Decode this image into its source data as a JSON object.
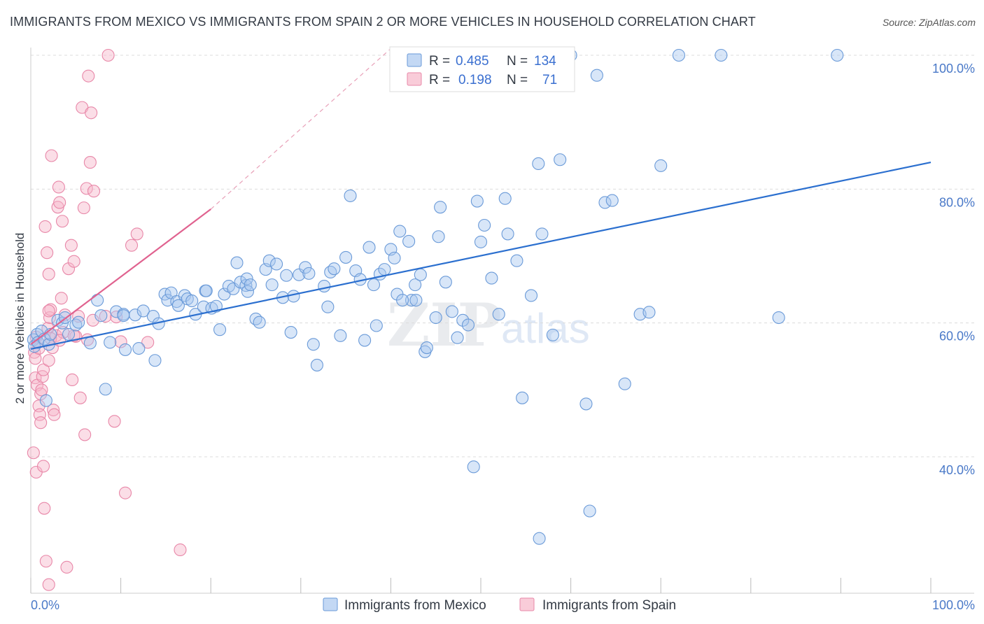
{
  "title": "IMMIGRANTS FROM MEXICO VS IMMIGRANTS FROM SPAIN 2 OR MORE VEHICLES IN HOUSEHOLD CORRELATION CHART",
  "source": "Source: ZipAtlas.com",
  "watermark": {
    "zip": "ZIP",
    "atlas": "atlas"
  },
  "colors": {
    "mexico_fill": "#a9c8f0",
    "mexico_stroke": "#6a9ad8",
    "mexico_line": "#2b6fcf",
    "spain_fill": "#f6b6c9",
    "spain_stroke": "#e887a8",
    "spain_line": "#e0628f",
    "axis_text": "#4a79c8",
    "grid": "#dddddd"
  },
  "legend": {
    "r_label": "R =",
    "n_label": "N =",
    "rows": [
      {
        "series": "mexico",
        "r": "0.485",
        "n": "134"
      },
      {
        "series": "spain",
        "r": "0.198",
        "n": "71"
      }
    ]
  },
  "bottom_legend": [
    {
      "series": "mexico",
      "label": "Immigrants from Mexico"
    },
    {
      "series": "spain",
      "label": "Immigrants from Spain"
    }
  ],
  "chart_data": {
    "type": "scatter",
    "title": "IMMIGRANTS FROM MEXICO VS IMMIGRANTS FROM SPAIN 2 OR MORE VEHICLES IN HOUSEHOLD CORRELATION CHART",
    "xlabel": "",
    "ylabel": "2 or more Vehicles in Household",
    "x_tick_labels": [
      "0.0%",
      "100.0%"
    ],
    "y_tick_labels": [
      "100.0%",
      "80.0%",
      "60.0%",
      "40.0%"
    ],
    "y_ticks": [
      100,
      80,
      60,
      40
    ],
    "xlim": [
      0,
      100
    ],
    "ylim": [
      20,
      102
    ],
    "grid": true,
    "legend_position": "top-center",
    "series": [
      {
        "name": "Immigrants from Mexico",
        "key": "mexico",
        "r": 0.485,
        "n": 134,
        "trend": {
          "x": [
            0,
            100
          ],
          "y": [
            56.1,
            84.0
          ],
          "dashed_extension": false
        },
        "points": [
          [
            0.3,
            57.5
          ],
          [
            0.4,
            56.5
          ],
          [
            0.7,
            58.3
          ],
          [
            0.8,
            57.1
          ],
          [
            1.2,
            58.8
          ],
          [
            1.5,
            57.6
          ],
          [
            1.7,
            48.4
          ],
          [
            2.0,
            56.8
          ],
          [
            2.2,
            58.3
          ],
          [
            3.0,
            60.4
          ],
          [
            3.5,
            60.0
          ],
          [
            3.8,
            60.8
          ],
          [
            4.2,
            58.3
          ],
          [
            5.0,
            59.7
          ],
          [
            5.3,
            60.1
          ],
          [
            6.6,
            57.0
          ],
          [
            7.4,
            63.4
          ],
          [
            7.8,
            61.1
          ],
          [
            8.3,
            50.1
          ],
          [
            8.8,
            57.1
          ],
          [
            9.5,
            61.7
          ],
          [
            10.3,
            61.3
          ],
          [
            10.3,
            61.1
          ],
          [
            10.5,
            56.0
          ],
          [
            11.6,
            61.2
          ],
          [
            12.0,
            56.2
          ],
          [
            12.5,
            61.8
          ],
          [
            13.6,
            61.0
          ],
          [
            13.8,
            54.4
          ],
          [
            14.2,
            59.9
          ],
          [
            14.9,
            64.3
          ],
          [
            15.2,
            63.4
          ],
          [
            15.6,
            64.5
          ],
          [
            16.2,
            63.2
          ],
          [
            16.4,
            62.6
          ],
          [
            17.1,
            64.1
          ],
          [
            17.4,
            63.6
          ],
          [
            17.9,
            63.3
          ],
          [
            18.3,
            61.3
          ],
          [
            19.2,
            62.4
          ],
          [
            19.4,
            64.8
          ],
          [
            19.5,
            64.8
          ],
          [
            20.1,
            62.2
          ],
          [
            20.6,
            62.5
          ],
          [
            21.0,
            59.0
          ],
          [
            21.5,
            64.3
          ],
          [
            22.0,
            65.5
          ],
          [
            22.5,
            65.1
          ],
          [
            22.9,
            69.0
          ],
          [
            23.3,
            66.1
          ],
          [
            23.9,
            65.6
          ],
          [
            24.0,
            66.6
          ],
          [
            24.1,
            64.7
          ],
          [
            24.4,
            65.7
          ],
          [
            25.0,
            60.6
          ],
          [
            25.4,
            60.1
          ],
          [
            26.1,
            68.0
          ],
          [
            26.5,
            69.3
          ],
          [
            26.8,
            65.7
          ],
          [
            27.3,
            68.8
          ],
          [
            28.0,
            63.8
          ],
          [
            28.4,
            67.1
          ],
          [
            28.9,
            58.6
          ],
          [
            29.2,
            64.0
          ],
          [
            29.8,
            67.2
          ],
          [
            30.5,
            68.3
          ],
          [
            30.9,
            67.4
          ],
          [
            31.4,
            56.8
          ],
          [
            31.8,
            53.7
          ],
          [
            32.6,
            65.5
          ],
          [
            33.0,
            62.4
          ],
          [
            33.3,
            67.6
          ],
          [
            33.7,
            68.1
          ],
          [
            34.4,
            58.1
          ],
          [
            35.0,
            69.8
          ],
          [
            35.5,
            79.0
          ],
          [
            36.1,
            67.8
          ],
          [
            36.6,
            66.5
          ],
          [
            37.1,
            57.4
          ],
          [
            37.6,
            71.3
          ],
          [
            38.1,
            65.7
          ],
          [
            38.4,
            59.6
          ],
          [
            38.8,
            67.3
          ],
          [
            39.3,
            68.0
          ],
          [
            40.0,
            71.0
          ],
          [
            40.4,
            69.7
          ],
          [
            40.7,
            64.3
          ],
          [
            41.0,
            73.7
          ],
          [
            42.0,
            72.2
          ],
          [
            42.3,
            63.4
          ],
          [
            42.7,
            65.7
          ],
          [
            42.8,
            63.4
          ],
          [
            43.3,
            67.2
          ],
          [
            43.8,
            55.7
          ],
          [
            44.0,
            56.3
          ],
          [
            45.0,
            60.8
          ],
          [
            45.3,
            72.9
          ],
          [
            45.5,
            77.3
          ],
          [
            46.1,
            66.1
          ],
          [
            46.8,
            61.7
          ],
          [
            47.4,
            57.8
          ],
          [
            48.0,
            60.4
          ],
          [
            48.6,
            59.7
          ],
          [
            49.6,
            78.2
          ],
          [
            50.0,
            72.1
          ],
          [
            50.4,
            74.6
          ],
          [
            51.2,
            66.7
          ],
          [
            52.0,
            61.3
          ],
          [
            52.7,
            78.6
          ],
          [
            53.0,
            73.3
          ],
          [
            54.0,
            69.3
          ],
          [
            54.6,
            48.8
          ],
          [
            55.6,
            64.1
          ],
          [
            56.4,
            83.8
          ],
          [
            56.8,
            73.3
          ],
          [
            58.0,
            58.2
          ],
          [
            58.8,
            84.4
          ],
          [
            60.0,
            100
          ],
          [
            61.7,
            47.9
          ],
          [
            62.9,
            97.0
          ],
          [
            63.8,
            78.0
          ],
          [
            64.6,
            78.3
          ],
          [
            66.0,
            50.9
          ],
          [
            67.7,
            61.3
          ],
          [
            68.7,
            61.6
          ],
          [
            70.0,
            83.5
          ],
          [
            72.0,
            100
          ],
          [
            76.7,
            100
          ],
          [
            83.1,
            60.8
          ],
          [
            89.6,
            100
          ],
          [
            41.3,
            63.4
          ],
          [
            56.5,
            27.8
          ],
          [
            62.1,
            31.9
          ],
          [
            49.2,
            38.5
          ]
        ]
      },
      {
        "name": "Immigrants from Spain",
        "key": "spain",
        "r": 0.198,
        "n": 71,
        "trend": {
          "x": [
            0,
            20
          ],
          "y": [
            56.8,
            77.0
          ],
          "dashed_to": [
            40,
            101
          ]
        },
        "points": [
          [
            0.3,
            40.6
          ],
          [
            0.4,
            55.6
          ],
          [
            0.5,
            54.7
          ],
          [
            0.5,
            51.8
          ],
          [
            0.6,
            37.7
          ],
          [
            0.7,
            50.7
          ],
          [
            0.8,
            57.1
          ],
          [
            0.9,
            47.6
          ],
          [
            1.0,
            46.3
          ],
          [
            1.1,
            45.1
          ],
          [
            1.3,
            52.0
          ],
          [
            1.4,
            38.6
          ],
          [
            1.5,
            32.3
          ],
          [
            1.6,
            74.4
          ],
          [
            1.7,
            24.4
          ],
          [
            1.8,
            70.5
          ],
          [
            1.9,
            59.2
          ],
          [
            2.0,
            67.3
          ],
          [
            2.1,
            60.8
          ],
          [
            2.2,
            62.0
          ],
          [
            2.3,
            85.0
          ],
          [
            2.4,
            56.3
          ],
          [
            2.5,
            47.0
          ],
          [
            2.6,
            46.3
          ],
          [
            2.8,
            58.1
          ],
          [
            3.0,
            77.3
          ],
          [
            3.1,
            80.3
          ],
          [
            3.2,
            78.0
          ],
          [
            3.4,
            63.7
          ],
          [
            3.5,
            75.2
          ],
          [
            3.6,
            58.6
          ],
          [
            3.8,
            61.2
          ],
          [
            4.0,
            23.5
          ],
          [
            4.2,
            68.1
          ],
          [
            4.5,
            71.6
          ],
          [
            4.6,
            51.5
          ],
          [
            4.8,
            69.2
          ],
          [
            5.0,
            58.0
          ],
          [
            5.3,
            61.0
          ],
          [
            5.5,
            48.8
          ],
          [
            5.7,
            92.2
          ],
          [
            5.9,
            77.2
          ],
          [
            6.0,
            43.3
          ],
          [
            6.2,
            80.1
          ],
          [
            6.3,
            57.5
          ],
          [
            6.4,
            96.9
          ],
          [
            6.6,
            84.0
          ],
          [
            6.7,
            91.4
          ],
          [
            6.9,
            60.4
          ],
          [
            7.0,
            79.7
          ],
          [
            8.3,
            61.0
          ],
          [
            9.3,
            45.3
          ],
          [
            9.5,
            60.9
          ],
          [
            10.0,
            57.2
          ],
          [
            10.5,
            34.6
          ],
          [
            11.2,
            71.6
          ],
          [
            11.8,
            73.3
          ],
          [
            13.0,
            57.1
          ],
          [
            16.6,
            26.1
          ],
          [
            8.6,
            100
          ],
          [
            1.1,
            49.4
          ],
          [
            1.4,
            53.0
          ],
          [
            0.9,
            56.2
          ],
          [
            1.2,
            50.0
          ],
          [
            2.0,
            54.4
          ],
          [
            2.2,
            57.7
          ],
          [
            0.6,
            57.9
          ],
          [
            2.0,
            61.8
          ],
          [
            3.2,
            57.4
          ],
          [
            4.8,
            58.1
          ],
          [
            2.0,
            20.9
          ]
        ]
      }
    ]
  }
}
